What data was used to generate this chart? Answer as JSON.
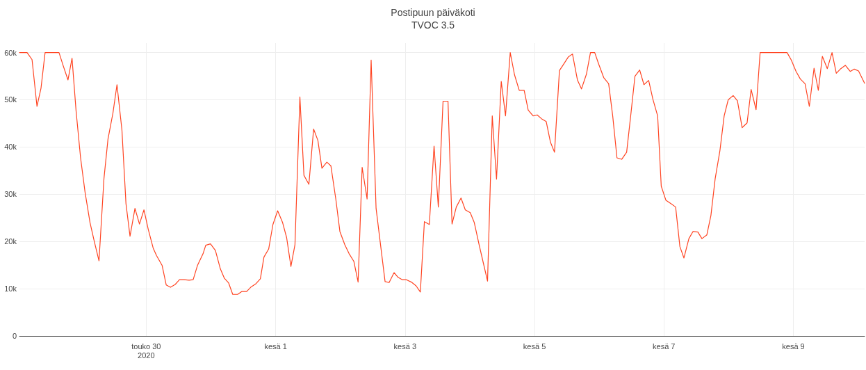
{
  "chart_data": {
    "type": "line",
    "title": "Postipuun päiväkoti",
    "subtitle": "TVOC 3.5",
    "series": [
      {
        "color": "#ff4422",
        "x": [
          "2020-05-28T01:00",
          "2020-05-28T02:20",
          "2020-05-28T03:50",
          "2020-05-28T05:40",
          "2020-05-28T07:30",
          "2020-05-28T09:00",
          "2020-05-28T10:30",
          "2020-05-28T12:20",
          "2020-05-28T13:50",
          "2020-05-28T15:40",
          "2020-05-28T17:10",
          "2020-05-28T19:00",
          "2020-05-28T20:30",
          "2020-05-28T22:00",
          "2020-05-28T23:40",
          "2020-05-29T01:20",
          "2020-05-29T03:10",
          "2020-05-29T04:45",
          "2020-05-29T06:30",
          "2020-05-29T08:20",
          "2020-05-29T09:50",
          "2020-05-29T11:40",
          "2020-05-29T13:10",
          "2020-05-29T15:00",
          "2020-05-29T16:30",
          "2020-05-29T18:00",
          "2020-05-29T19:50",
          "2020-05-29T21:30",
          "2020-05-29T23:10",
          "2020-05-30T00:45",
          "2020-05-30T02:35",
          "2020-05-30T03:50",
          "2020-05-30T05:55",
          "2020-05-30T07:25",
          "2020-05-30T09:00",
          "2020-05-30T10:45",
          "2020-05-30T12:20",
          "2020-05-30T14:05",
          "2020-05-30T15:55",
          "2020-05-30T17:25",
          "2020-05-30T19:00",
          "2020-05-30T21:05",
          "2020-05-30T22:05",
          "2020-05-30T23:50",
          "2020-05-31T01:40",
          "2020-05-31T03:30",
          "2020-05-31T05:00",
          "2020-05-31T06:35",
          "2020-05-31T08:05",
          "2020-05-31T09:55",
          "2020-05-31T11:25",
          "2020-05-31T13:15",
          "2020-05-31T14:45",
          "2020-05-31T16:35",
          "2020-05-31T18:20",
          "2020-05-31T19:40",
          "2020-05-31T21:25",
          "2020-05-31T23:00",
          "2020-06-01T00:45",
          "2020-06-01T02:35",
          "2020-06-01T04:05",
          "2020-06-01T05:40",
          "2020-06-01T07:10",
          "2020-06-01T09:00",
          "2020-06-01T10:30",
          "2020-06-01T12:20",
          "2020-06-01T14:05",
          "2020-06-01T15:40",
          "2020-06-01T17:10",
          "2020-06-01T19:00",
          "2020-06-01T20:30",
          "2020-06-01T22:20",
          "2020-06-01T23:50",
          "2020-06-02T01:40",
          "2020-06-02T03:15",
          "2020-06-02T05:00",
          "2020-06-02T06:35",
          "2020-06-02T08:05",
          "2020-06-02T09:55",
          "2020-06-02T11:25",
          "2020-06-02T13:15",
          "2020-06-02T14:45",
          "2020-06-02T16:35",
          "2020-06-02T18:05",
          "2020-06-02T19:55",
          "2020-06-02T21:25",
          "2020-06-02T23:00",
          "2020-06-03T00:30",
          "2020-06-03T02:20",
          "2020-06-03T04:05",
          "2020-06-03T05:40",
          "2020-06-03T07:10",
          "2020-06-03T09:00",
          "2020-06-03T10:45",
          "2020-06-03T12:20",
          "2020-06-03T14:05",
          "2020-06-03T15:55",
          "2020-06-03T17:25",
          "2020-06-03T19:00",
          "2020-06-03T20:45",
          "2020-06-03T22:20",
          "2020-06-04T00:10",
          "2020-06-04T01:40",
          "2020-06-04T03:30",
          "2020-06-04T05:00",
          "2020-06-04T06:35",
          "2020-06-04T08:20",
          "2020-06-04T09:55",
          "2020-06-04T11:40",
          "2020-06-04T13:15",
          "2020-06-04T15:00",
          "2020-06-04T16:35",
          "2020-06-04T18:20",
          "2020-06-04T20:10",
          "2020-06-04T21:40",
          "2020-06-04T23:30",
          "2020-06-05T01:00",
          "2020-06-05T02:35",
          "2020-06-05T04:20",
          "2020-06-05T05:55",
          "2020-06-05T07:25",
          "2020-06-05T09:15",
          "2020-06-05T10:45",
          "2020-06-05T12:35",
          "2020-06-05T14:05",
          "2020-06-05T15:55",
          "2020-06-05T17:25",
          "2020-06-05T19:15",
          "2020-06-05T20:45",
          "2020-06-05T22:20",
          "2020-06-05T23:50",
          "2020-06-06T01:40",
          "2020-06-06T03:30",
          "2020-06-06T05:00",
          "2020-06-06T06:35",
          "2020-06-06T08:20",
          "2020-06-06T10:10",
          "2020-06-06T11:40",
          "2020-06-06T13:15",
          "2020-06-06T15:00",
          "2020-06-06T16:35",
          "2020-06-06T18:20",
          "2020-06-06T19:55",
          "2020-06-06T21:40",
          "2020-06-06T23:00",
          "2020-06-07T00:45",
          "2020-06-07T02:35",
          "2020-06-07T04:20",
          "2020-06-07T05:55",
          "2020-06-07T07:25",
          "2020-06-07T09:15",
          "2020-06-07T10:45",
          "2020-06-07T12:35",
          "2020-06-07T14:05",
          "2020-06-07T15:55",
          "2020-06-07T17:25",
          "2020-06-07T19:00",
          "2020-06-07T20:45",
          "2020-06-07T22:20",
          "2020-06-07T23:50",
          "2020-06-08T01:40",
          "2020-06-08T03:15",
          "2020-06-08T05:00",
          "2020-06-08T06:50",
          "2020-06-08T08:20",
          "2020-06-08T10:10",
          "2020-06-08T11:40",
          "2020-06-08T13:15",
          "2020-06-08T15:00",
          "2020-06-08T16:35",
          "2020-06-08T18:20",
          "2020-06-08T19:55",
          "2020-06-08T21:40",
          "2020-06-08T23:15",
          "2020-06-09T01:00",
          "2020-06-09T02:35",
          "2020-06-09T04:20",
          "2020-06-09T05:55",
          "2020-06-09T07:40",
          "2020-06-09T09:15",
          "2020-06-09T10:45",
          "2020-06-09T12:35",
          "2020-06-09T14:20",
          "2020-06-09T15:55",
          "2020-06-09T17:25",
          "2020-06-09T19:15",
          "2020-06-09T21:05",
          "2020-06-09T22:35",
          "2020-06-10T00:10",
          "2020-06-10T02:25"
        ],
        "values": [
          60000,
          60000,
          60000,
          58500,
          48600,
          52500,
          60000,
          60000,
          60000,
          60000,
          57300,
          54200,
          58800,
          47600,
          37700,
          30400,
          24000,
          20000,
          15900,
          33300,
          41700,
          47200,
          53200,
          43600,
          28000,
          21100,
          27000,
          23700,
          26700,
          22600,
          18600,
          17000,
          14900,
          10800,
          10300,
          10900,
          11900,
          11900,
          11800,
          11900,
          14900,
          17400,
          19200,
          19500,
          18100,
          14200,
          12200,
          11200,
          8800,
          8800,
          9400,
          9400,
          10300,
          11000,
          12100,
          16700,
          18400,
          23600,
          26500,
          24000,
          20800,
          14700,
          19300,
          50600,
          34000,
          32100,
          43800,
          41400,
          35500,
          36800,
          36000,
          28900,
          22100,
          19300,
          17400,
          15800,
          11400,
          35700,
          29000,
          58400,
          27000,
          20000,
          11500,
          11300,
          13400,
          12400,
          11900,
          11900,
          11400,
          10600,
          9300,
          24200,
          23600,
          40200,
          27300,
          49700,
          49700,
          23700,
          27300,
          29200,
          26700,
          26100,
          24000,
          19200,
          15500,
          11600,
          46600,
          33200,
          53900,
          46600,
          60000,
          55300,
          52000,
          52000,
          47800,
          46600,
          46800,
          46000,
          45400,
          41000,
          38900,
          56200,
          57500,
          59100,
          59700,
          54200,
          52300,
          55400,
          60000,
          60000,
          57500,
          54700,
          53400,
          46600,
          37700,
          37400,
          38900,
          46600,
          55000,
          56300,
          53200,
          54100,
          50100,
          46600,
          31700,
          28700,
          28000,
          27300,
          18900,
          16500,
          20600,
          22100,
          22000,
          20600,
          21400,
          25500,
          33300,
          39200,
          46600,
          50000,
          50900,
          49800,
          44100,
          45100,
          52200,
          47900,
          60000,
          60000,
          60000,
          60000,
          60000,
          60000,
          60000,
          58400,
          56000,
          54400,
          53400,
          48600,
          56700,
          52000,
          59200,
          56600,
          60000,
          55600,
          56500,
          57300,
          56000,
          56500,
          56100,
          53500
        ]
      }
    ],
    "xlim": [
      "2020-05-28T01:00",
      "2020-06-10T02:25"
    ],
    "xticks": [
      {
        "value": "2020-05-30",
        "label": "touko 30\n2020"
      },
      {
        "value": "2020-06-01",
        "label": "kesä 1"
      },
      {
        "value": "2020-06-03",
        "label": "kesä 3"
      },
      {
        "value": "2020-06-05",
        "label": "kesä 5"
      },
      {
        "value": "2020-06-07",
        "label": "kesä 7"
      },
      {
        "value": "2020-06-09",
        "label": "kesä 9"
      }
    ],
    "ylim": [
      0,
      62000
    ],
    "yticks": [
      0,
      {
        "value": 10000,
        "label": "10k"
      },
      {
        "value": 20000,
        "label": "20k"
      },
      {
        "value": 30000,
        "label": "30k"
      },
      {
        "value": 40000,
        "label": "40k"
      },
      {
        "value": 50000,
        "label": "50k"
      },
      {
        "value": 60000,
        "label": "60k"
      }
    ],
    "grid": true,
    "marker": "none",
    "line_style": "solid"
  }
}
